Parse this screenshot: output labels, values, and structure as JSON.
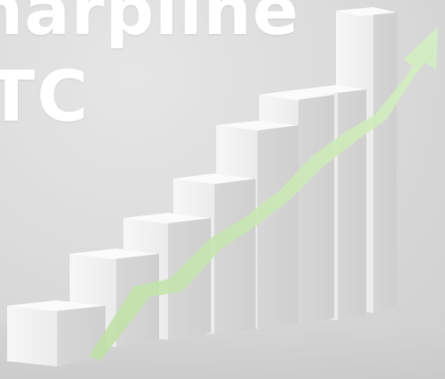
{
  "overlay": {
    "line1": "harpline",
    "line2": "TC"
  },
  "scene": {
    "subject": "growth-bar-chart-with-arrow",
    "bar_color": "#f4f4f4",
    "arrow_color": "#c9e8b4",
    "background_color": "#dcdcdc"
  }
}
